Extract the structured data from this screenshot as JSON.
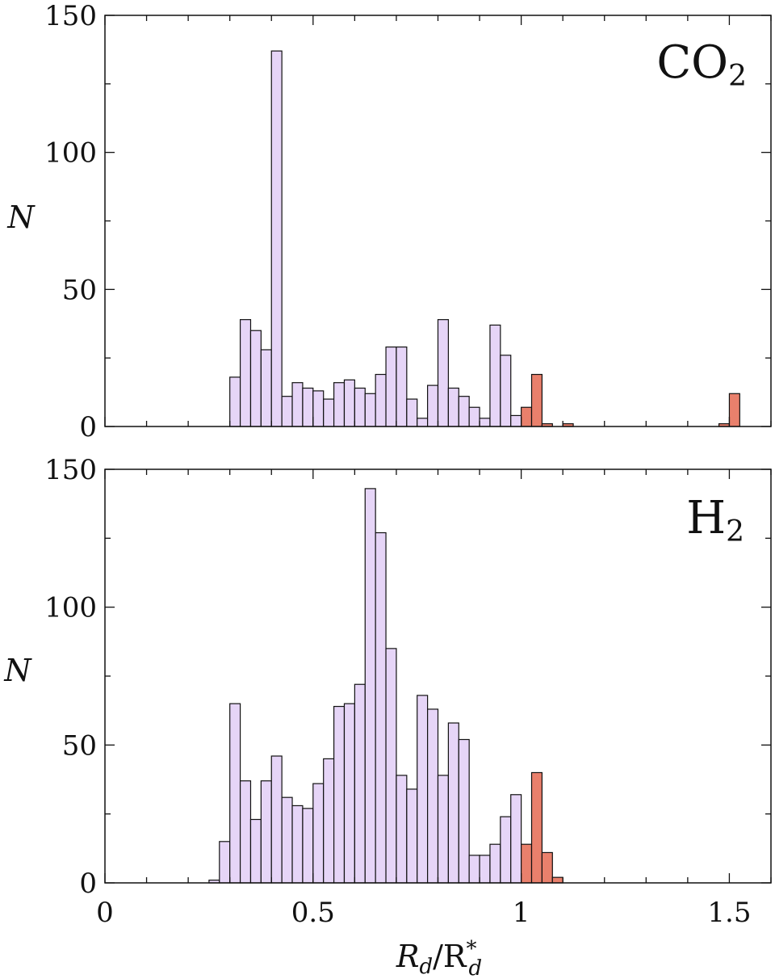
{
  "chart_data": [
    {
      "type": "bar",
      "panel_label": "CO",
      "panel_label_sub": "2",
      "ylabel": "N",
      "xlim": [
        0,
        1.6
      ],
      "ylim": [
        0,
        150
      ],
      "yticks": [
        0,
        50,
        100,
        150
      ],
      "xticks": [
        0,
        0.5,
        1,
        1.5
      ],
      "xtick_labels": [],
      "bin_width": 0.025,
      "series": [
        {
          "color": "#e6d5f7",
          "x": [
            0.3125,
            0.3375,
            0.3625,
            0.3875,
            0.4125,
            0.4375,
            0.4625,
            0.4875,
            0.5125,
            0.5375,
            0.5625,
            0.5875,
            0.6125,
            0.6375,
            0.6625,
            0.6875,
            0.7125,
            0.7375,
            0.7625,
            0.7875,
            0.8125,
            0.8375,
            0.8625,
            0.8875,
            0.9125,
            0.9375,
            0.9625,
            0.9875
          ],
          "values": [
            18,
            39,
            35,
            28,
            137,
            11,
            16,
            14,
            13,
            10,
            16,
            17,
            14,
            12,
            19,
            29,
            29,
            10,
            3,
            15,
            39,
            14,
            11,
            7,
            3,
            37,
            26,
            4
          ]
        },
        {
          "color": "#e9806c",
          "x": [
            1.0125,
            1.0375,
            1.0625,
            1.1125,
            1.4875,
            1.5125
          ],
          "values": [
            7,
            19,
            1,
            1,
            1,
            12
          ]
        }
      ]
    },
    {
      "type": "bar",
      "panel_label": "H",
      "panel_label_sub": "2",
      "ylabel": "N",
      "xlabel_main": "R",
      "xlabel_sub": "d",
      "xlabel_mid": "/R",
      "xlabel_sup": "*",
      "xlabel_sub2": "d",
      "xlim": [
        0,
        1.6
      ],
      "ylim": [
        0,
        150
      ],
      "yticks": [
        0,
        50,
        100,
        150
      ],
      "xticks": [
        0,
        0.5,
        1,
        1.5
      ],
      "xtick_labels": [
        "0",
        "0.5",
        "1",
        "1.5"
      ],
      "bin_width": 0.025,
      "series": [
        {
          "color": "#e6d5f7",
          "x": [
            0.2625,
            0.2875,
            0.3125,
            0.3375,
            0.3625,
            0.3875,
            0.4125,
            0.4375,
            0.4625,
            0.4875,
            0.5125,
            0.5375,
            0.5625,
            0.5875,
            0.6125,
            0.6375,
            0.6625,
            0.6875,
            0.7125,
            0.7375,
            0.7625,
            0.7875,
            0.8125,
            0.8375,
            0.8625,
            0.8875,
            0.9125,
            0.9375,
            0.9625,
            0.9875
          ],
          "values": [
            1,
            15,
            65,
            37,
            23,
            37,
            46,
            31,
            28,
            27,
            36,
            45,
            64,
            65,
            72,
            143,
            127,
            85,
            39,
            34,
            68,
            63,
            39,
            58,
            52,
            10,
            10,
            14,
            24,
            32
          ]
        },
        {
          "color": "#e9806c",
          "x": [
            1.0125,
            1.0375,
            1.0625,
            1.0875
          ],
          "values": [
            14,
            40,
            11,
            2
          ]
        }
      ]
    }
  ]
}
